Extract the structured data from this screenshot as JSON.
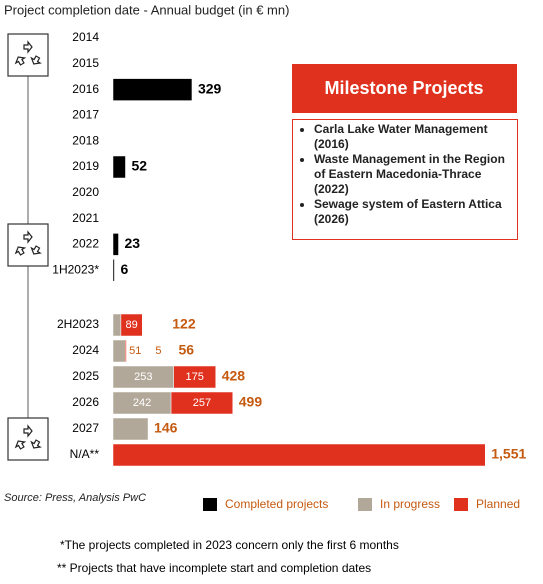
{
  "chart_data": {
    "type": "stacked-bar-horizontal",
    "title": "Project completion date - Annual budget (in € mn)",
    "categories": [
      "2014",
      "2015",
      "2016",
      "2017",
      "2018",
      "2019",
      "2020",
      "2021",
      "2022",
      "1H2023*",
      "2H2023",
      "2024",
      "2025",
      "2026",
      "2027",
      "N/A**"
    ],
    "series": [
      {
        "name": "Completed projects",
        "color": "#000000",
        "values": [
          null,
          null,
          329,
          null,
          null,
          52,
          null,
          null,
          23,
          6,
          null,
          null,
          null,
          null,
          null,
          null
        ]
      },
      {
        "name": "In progress",
        "color": "#b1a899",
        "values": [
          null,
          null,
          null,
          null,
          null,
          null,
          null,
          null,
          null,
          null,
          33,
          51,
          253,
          242,
          146,
          null
        ]
      },
      {
        "name": "Planned",
        "color": "#e0301e",
        "values": [
          null,
          null,
          null,
          null,
          null,
          null,
          null,
          null,
          null,
          null,
          89,
          5,
          175,
          257,
          null,
          1551
        ]
      }
    ],
    "totals": {
      "values": [
        null,
        null,
        329,
        null,
        null,
        52,
        null,
        null,
        23,
        6,
        122,
        56,
        428,
        499,
        146,
        1551
      ],
      "value_labels": [
        null,
        null,
        "329",
        null,
        null,
        "52",
        null,
        null,
        "23",
        "6",
        "122",
        "56",
        "428",
        "499",
        "146",
        "1,551"
      ]
    },
    "milestones": {
      "title": "Milestone Projects",
      "items": [
        "Carla Lake Water Management (2016)",
        "Waste Management in the Region of Eastern Macedonia-Thrace (2022)",
        "Sewage system of Eastern Attica (2026)"
      ]
    },
    "source": "Source: Press, Analysis PwC",
    "footnotes": [
      "*The projects completed in 2023 concern only the first 6 months",
      "** Projects that have incomplete start and completion dates"
    ]
  }
}
